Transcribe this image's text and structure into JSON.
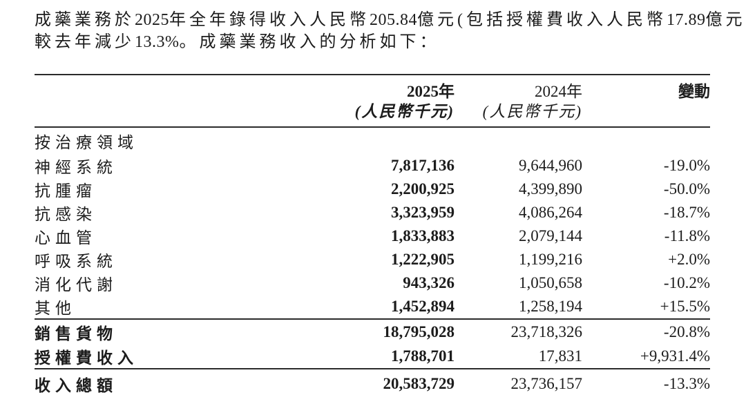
{
  "colors": {
    "text": "#1c1c1c",
    "rule": "#2a2a2a",
    "background": "#ffffff"
  },
  "intro": {
    "l1": [
      "成藥業務於",
      "2025",
      "年全年錄得收入人民幣",
      "205.84",
      "億元(包括授權費收入人民幣",
      "17.89",
      "億元)，"
    ],
    "l2": [
      "較去年減少",
      "13.3%",
      "。成藥業務收入的分析如下："
    ]
  },
  "table": {
    "header": {
      "y2025": "2025年",
      "unit2025": "(人民幣千元)",
      "y2024": "2024年",
      "unit2024": "(人民幣千元)",
      "change": "變動"
    },
    "section": "按治療領域",
    "rows": [
      {
        "label": "神經系統",
        "v2025": "7,817,136",
        "v2024": "9,644,960",
        "change": "-19.0%"
      },
      {
        "label": "抗腫瘤",
        "v2025": "2,200,925",
        "v2024": "4,399,890",
        "change": "-50.0%"
      },
      {
        "label": "抗感染",
        "v2025": "3,323,959",
        "v2024": "4,086,264",
        "change": "-18.7%"
      },
      {
        "label": "心血管",
        "v2025": "1,833,883",
        "v2024": "2,079,144",
        "change": "-11.8%"
      },
      {
        "label": "呼吸系統",
        "v2025": "1,222,905",
        "v2024": "1,199,216",
        "change": "+2.0%"
      },
      {
        "label": "消化代謝",
        "v2025": "943,326",
        "v2024": "1,050,658",
        "change": "-10.2%"
      },
      {
        "label": "其他",
        "v2025": "1,452,894",
        "v2024": "1,258,194",
        "change": "+15.5%"
      }
    ],
    "totals": [
      {
        "label": "銷售貨物",
        "v2025": "18,795,028",
        "v2024": "23,718,326",
        "change": "-20.8%"
      },
      {
        "label": "授權費收入",
        "v2025": "1,788,701",
        "v2024": "17,831",
        "change": "+9,931.4%"
      }
    ],
    "grand": {
      "label": "收入總額",
      "v2025": "20,583,729",
      "v2024": "23,736,157",
      "change": "-13.3%"
    }
  }
}
